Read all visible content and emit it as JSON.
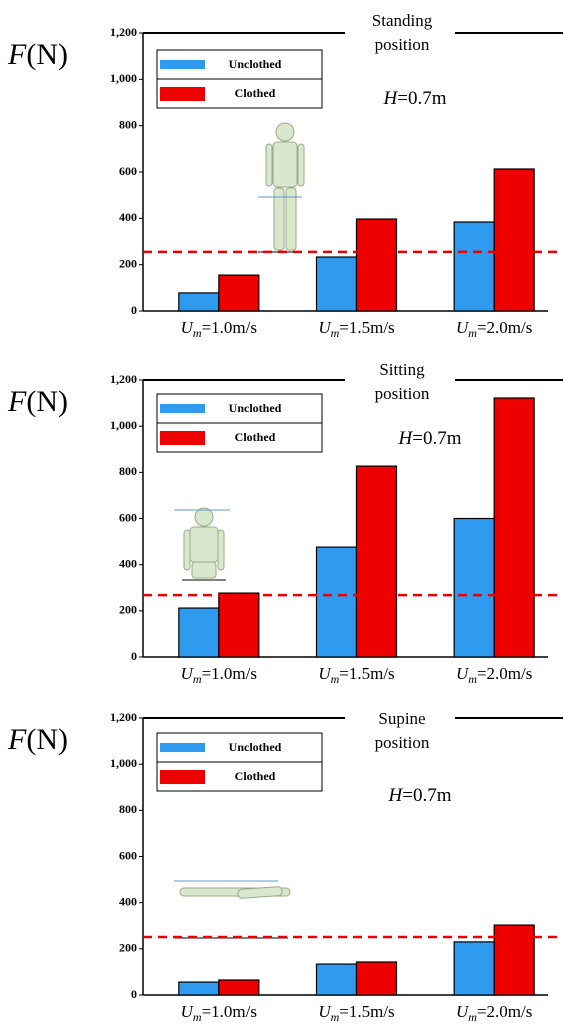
{
  "chart_data": [
    {
      "type": "bar",
      "title": "Standing position",
      "y_label": "F(N)",
      "annotation": "H=0.7m",
      "categories": [
        "Um=1.0m/s",
        "Um=1.5m/s",
        "Um=2.0m/s"
      ],
      "series": [
        {
          "name": "Unclothed",
          "color": "#2e9bf0",
          "values": [
            78,
            233,
            384
          ]
        },
        {
          "name": "Clothed",
          "color": "#ee0000",
          "values": [
            155,
            397,
            613
          ]
        }
      ],
      "ylim": [
        0,
        1200
      ],
      "yticks": [
        0,
        200,
        400,
        600,
        800,
        {
          "value": 1000,
          "label": "1,000"
        },
        {
          "value": 1200,
          "label": "1,200"
        }
      ],
      "reference_line": 255,
      "reference_color": "#ee0000",
      "grid": false
    },
    {
      "type": "bar",
      "title": "Sitting position",
      "y_label": "F(N)",
      "annotation": "H=0.7m",
      "categories": [
        "Um=1.0m/s",
        "Um=1.5m/s",
        "Um=2.0m/s"
      ],
      "series": [
        {
          "name": "Unclothed",
          "color": "#2e9bf0",
          "values": [
            212,
            476,
            600
          ]
        },
        {
          "name": "Clothed",
          "color": "#ee0000",
          "values": [
            277,
            827,
            1122
          ]
        }
      ],
      "ylim": [
        0,
        1200
      ],
      "yticks": [
        0,
        200,
        400,
        600,
        800,
        {
          "value": 1000,
          "label": "1,000"
        },
        {
          "value": 1200,
          "label": "1,200"
        }
      ],
      "reference_line": 268,
      "reference_color": "#ee0000",
      "grid": false
    },
    {
      "type": "bar",
      "title": "Supine position",
      "y_label": "F(N)",
      "annotation": "H=0.7m",
      "categories": [
        "Um=1.0m/s",
        "Um=1.5m/s",
        "Um=2.0m/s"
      ],
      "series": [
        {
          "name": "Unclothed",
          "color": "#2e9bf0",
          "values": [
            56,
            134,
            230
          ]
        },
        {
          "name": "Clothed",
          "color": "#ee0000",
          "values": [
            65,
            143,
            303
          ]
        }
      ],
      "ylim": [
        0,
        1200
      ],
      "yticks": [
        0,
        200,
        400,
        600,
        800,
        {
          "value": 1000,
          "label": "1,000"
        },
        {
          "value": 1200,
          "label": "1,200"
        }
      ],
      "reference_line": 251,
      "reference_color": "#ee0000",
      "grid": false
    }
  ]
}
